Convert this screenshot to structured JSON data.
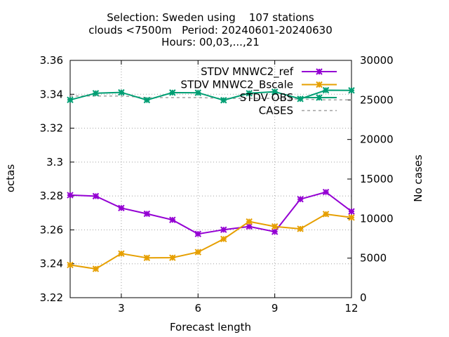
{
  "chart_data": {
    "type": "line",
    "title_lines": [
      "Selection: Sweden using    107 stations",
      "clouds <7500m   Period: 20240601-20240630",
      "Hours: 00,03,...,21"
    ],
    "xlabel": "Forecast length",
    "ylabel": "octas",
    "y2label": "No cases",
    "xlim": [
      1,
      12
    ],
    "ylim": [
      3.22,
      3.36
    ],
    "y2lim": [
      0,
      30000
    ],
    "xticks": [
      "3",
      "6",
      "9",
      "12"
    ],
    "yticks": [
      "3.22",
      "3.24",
      "3.26",
      "3.28",
      "3.3",
      "3.32",
      "3.34",
      "3.36"
    ],
    "y2ticks": [
      "0",
      "5000",
      "10000",
      "15000",
      "20000",
      "25000",
      "30000"
    ],
    "grid": true,
    "legend_position": "top-right",
    "x": [
      1,
      2,
      3,
      4,
      5,
      6,
      7,
      8,
      9,
      10,
      11,
      12
    ],
    "series": [
      {
        "name": "STDV MNWC2_ref",
        "color": "#9400d3",
        "axis": "left",
        "style": "line-points",
        "values": [
          3.2805,
          3.2799,
          3.2729,
          3.2695,
          3.2659,
          3.2576,
          3.2601,
          3.262,
          3.2589,
          3.2781,
          3.2823,
          3.2709
        ]
      },
      {
        "name": "STDV MNWC2_Bscale",
        "color": "#e69f00",
        "axis": "left",
        "style": "line-points",
        "values": [
          3.2393,
          3.237,
          3.246,
          3.2435,
          3.2436,
          3.2469,
          3.2546,
          3.2649,
          3.262,
          3.2606,
          3.2693,
          3.2673
        ]
      },
      {
        "name": "STDV OBS",
        "color": "#009e73",
        "axis": "left",
        "style": "line-points",
        "values": [
          3.3367,
          3.3406,
          3.3411,
          3.3366,
          3.341,
          3.3409,
          3.3365,
          3.3406,
          3.3415,
          3.3373,
          3.3424,
          3.3423
        ]
      },
      {
        "name": "CASES",
        "color": "#a0a0a0",
        "axis": "right",
        "style": "dashed",
        "values": [
          25500,
          25500,
          25500,
          25300,
          25300,
          25300,
          25200,
          25200,
          25200,
          25100,
          25000,
          25000
        ]
      }
    ]
  }
}
